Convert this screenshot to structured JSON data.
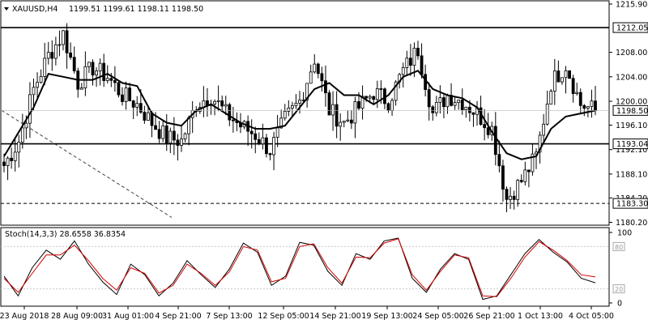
{
  "chart_data": [
    {
      "type": "candlestick",
      "symbol": "XAUUSD",
      "timeframe": "H4",
      "header_text": "XAUUSD,H4",
      "ohlc_text": "1199.51 1199.61 1198.11 1198.50",
      "ylim": [
        1179.0,
        1217.0
      ],
      "y_ticks": [
        "1215.90",
        "1208.00",
        "1204.00",
        "1200.00",
        "1196.10",
        "1192.10",
        "1188.10",
        "1184.20",
        "1180.20"
      ],
      "x_ticks": [
        "23 Aug 2018",
        "28 Aug 09:00",
        "31 Aug 01:00",
        "4 Sep 21:00",
        "7 Sep 13:00",
        "12 Sep 05:00",
        "14 Sep 21:00",
        "19 Sep 13:00",
        "24 Sep 05:00",
        "26 Sep 21:00",
        "1 Oct 13:00",
        "4 Oct 05:00"
      ],
      "horizontal_levels": [
        {
          "label": "1212.05",
          "value": 1212.05,
          "style": "solid"
        },
        {
          "label": "1193.04",
          "value": 1193.04,
          "style": "solid"
        },
        {
          "label": "1183.30",
          "value": 1183.3,
          "style": "dashed"
        }
      ],
      "current_price_label": "1198.50",
      "current_price": 1198.5,
      "trendline": {
        "style": "dashed",
        "from": {
          "x_tick": "23 Aug 2018",
          "value": 1198.5
        },
        "to": {
          "x_tick": "4 Sep 21:00",
          "value": 1181.0
        }
      },
      "moving_average_anchors": [
        1191.0,
        1195.0,
        1199.0,
        1204.5,
        1204.0,
        1203.5,
        1203.5,
        1204.5,
        1203.0,
        1202.5,
        1198.0,
        1196.5,
        1196.0,
        1198.5,
        1199.5,
        1198.0,
        1196.5,
        1195.5,
        1195.5,
        1196.0,
        1199.0,
        1202.0,
        1203.0,
        1201.0,
        1201.0,
        1199.5,
        1201.0,
        1204.0,
        1205.0,
        1202.0,
        1201.0,
        1200.5,
        1199.0,
        1195.0,
        1191.5,
        1190.5,
        1191.0,
        1195.5,
        1197.5,
        1198.0,
        1198.5
      ],
      "candle_closes": [
        1189.5,
        1193.5,
        1202.0,
        1207.5,
        1211.0,
        1203.0,
        1205.5,
        1204.0,
        1201.0,
        1199.5,
        1196.5,
        1194.0,
        1193.5,
        1199.5,
        1201.0,
        1198.0,
        1196.0,
        1194.5,
        1192.0,
        1197.0,
        1200.0,
        1207.0,
        1198.5,
        1196.5,
        1199.0,
        1201.5,
        1200.0,
        1205.0,
        1208.5,
        1198.0,
        1201.0,
        1200.0,
        1198.0,
        1195.5,
        1184.0,
        1187.0,
        1191.0,
        1203.0,
        1206.0,
        1199.5,
        1198.5
      ]
    },
    {
      "type": "line",
      "title": "Stoch(14,3,3) 28.6558 36.8354",
      "ylim": [
        0,
        100
      ],
      "y_ticks": [
        "100",
        "0"
      ],
      "levels": [
        "80",
        "20"
      ],
      "series": [
        {
          "color": "#000000",
          "values": [
            38,
            10,
            50,
            75,
            62,
            88,
            55,
            30,
            12,
            55,
            40,
            10,
            28,
            60,
            40,
            22,
            48,
            85,
            72,
            25,
            38,
            86,
            82,
            45,
            25,
            70,
            62,
            88,
            92,
            35,
            15,
            48,
            70,
            62,
            5,
            10,
            40,
            70,
            90,
            72,
            58,
            35,
            28.66
          ]
        },
        {
          "color": "#d40000",
          "values": [
            35,
            15,
            42,
            68,
            68,
            82,
            60,
            35,
            18,
            50,
            42,
            14,
            25,
            55,
            42,
            25,
            44,
            80,
            75,
            30,
            35,
            80,
            84,
            50,
            28,
            65,
            64,
            85,
            91,
            40,
            18,
            45,
            68,
            64,
            10,
            9,
            35,
            65,
            87,
            75,
            60,
            40,
            36.84
          ]
        }
      ]
    }
  ],
  "colors": {
    "line": "#000000",
    "grid": "#c8c8c8",
    "stoch_signal": "#d40000",
    "label_box": "#ffffff"
  }
}
